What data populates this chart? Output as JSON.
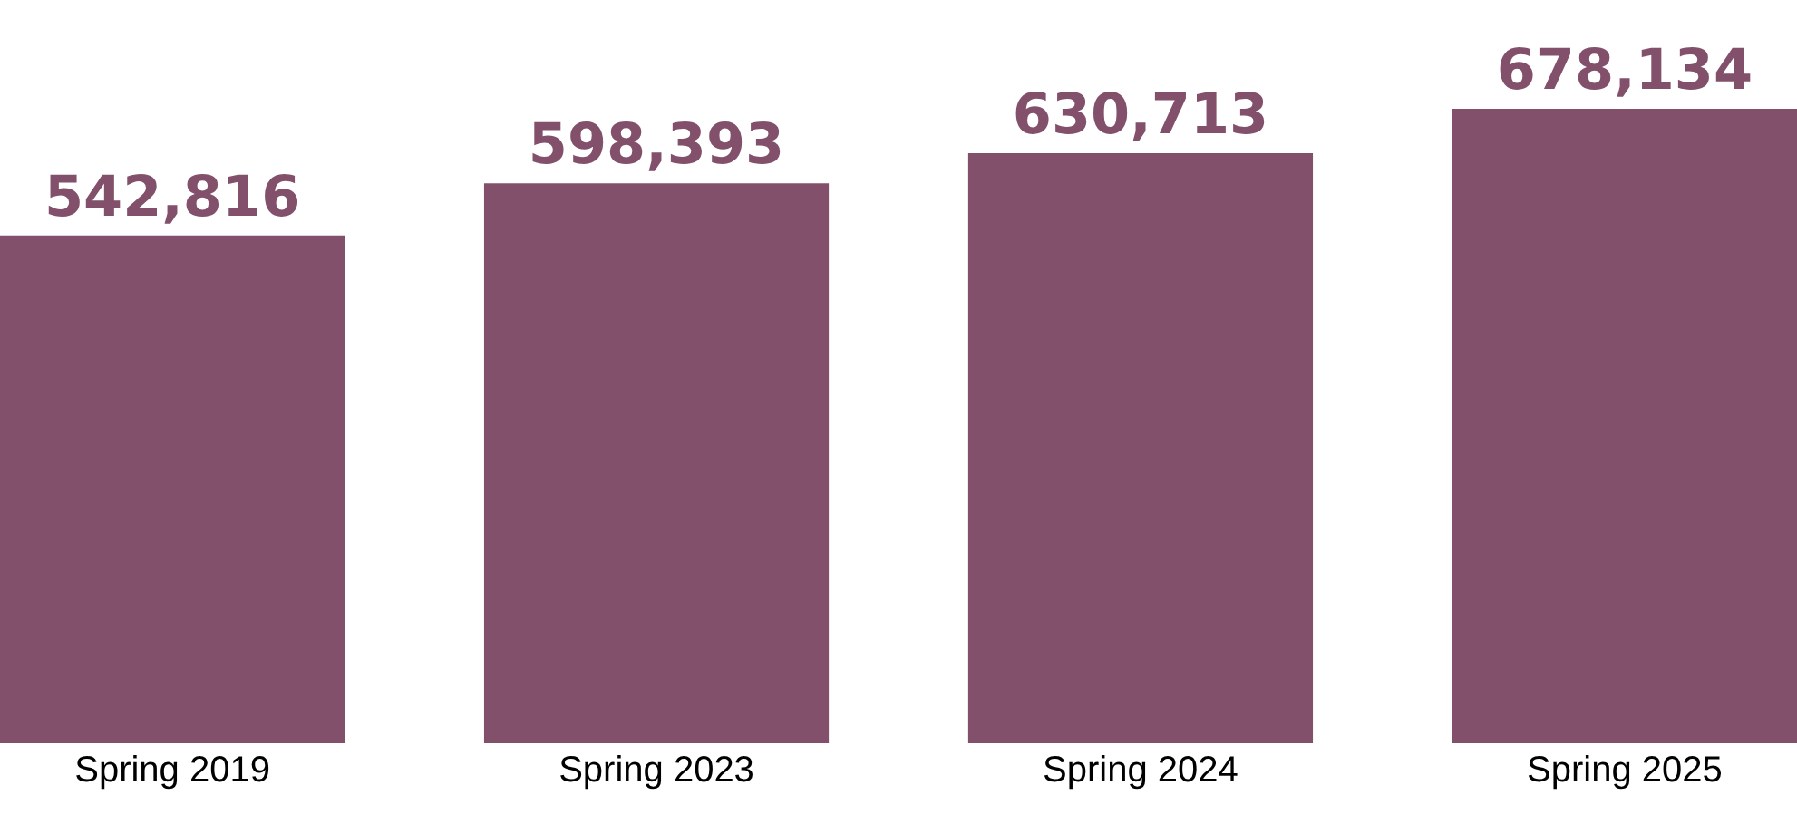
{
  "chart_data": {
    "type": "bar",
    "categories": [
      "Spring 2019",
      "Spring 2023",
      "Spring 2024",
      "Spring 2025"
    ],
    "values": [
      542816,
      598393,
      630713,
      678134
    ],
    "value_labels": [
      "542,816",
      "598,393",
      "630,713",
      "678,134"
    ],
    "color": "#83506b"
  }
}
